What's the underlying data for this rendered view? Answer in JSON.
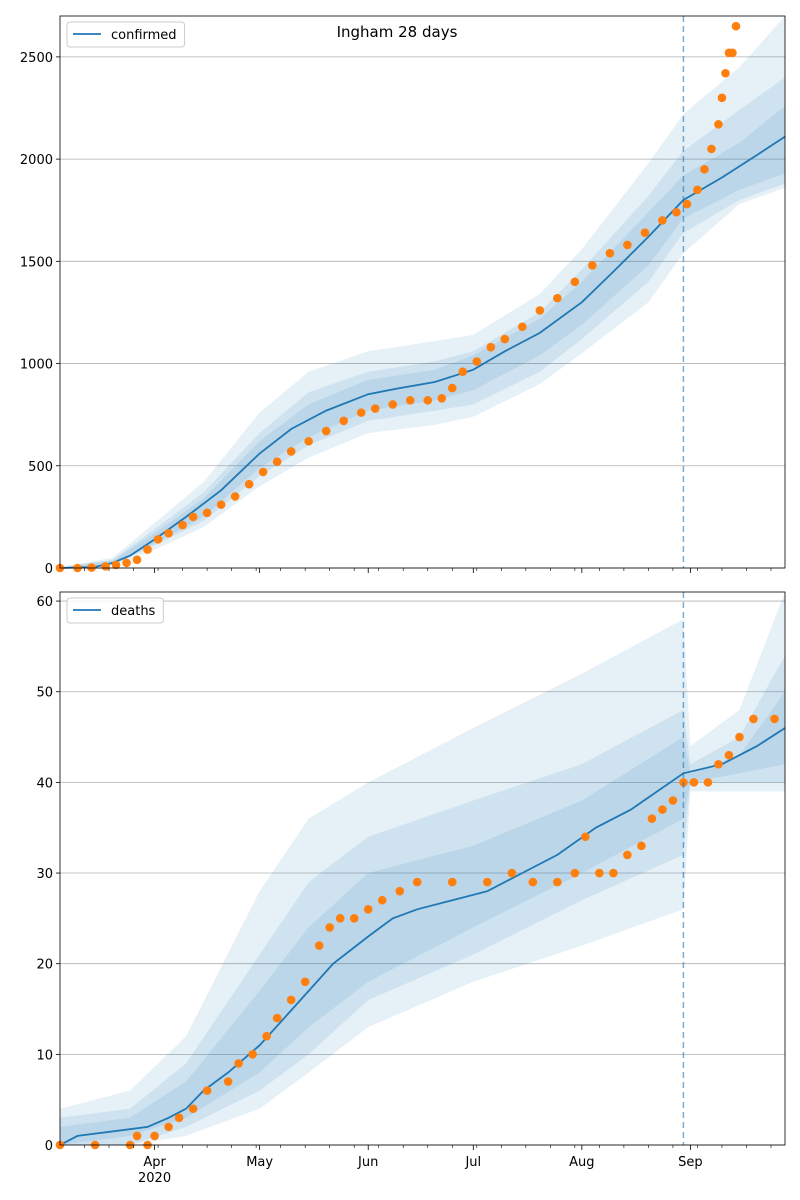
{
  "figure": {
    "title": "Ingham 28 days"
  },
  "colors": {
    "observed": "#ff7f0e",
    "model": "#1f77b4",
    "band": "#1f77b4",
    "grid": "#b0b0b0",
    "divider": "#1f77b4"
  },
  "x_axis": {
    "month_ticks": [
      {
        "date": "2020-04-01",
        "label": "Apr"
      },
      {
        "date": "2020-05-01",
        "label": "May"
      },
      {
        "date": "2020-06-01",
        "label": "Jun"
      },
      {
        "date": "2020-07-01",
        "label": "Jul"
      },
      {
        "date": "2020-08-01",
        "label": "Aug"
      },
      {
        "date": "2020-09-01",
        "label": "Sep"
      }
    ],
    "year_label": "2020",
    "range": [
      "2020-03-05",
      "2020-09-28"
    ]
  },
  "chart_data": [
    {
      "type": "line",
      "legend": "confirmed",
      "legend_position": "top-left",
      "grid": "horizontal",
      "ylim": [
        0,
        2700
      ],
      "yticks": [
        0,
        500,
        1000,
        1500,
        2000,
        2500
      ],
      "forecast_start": "2020-08-30",
      "model_line": [
        [
          "2020-03-05",
          0
        ],
        [
          "2020-03-15",
          5
        ],
        [
          "2020-03-20",
          25
        ],
        [
          "2020-03-25",
          60
        ],
        [
          "2020-04-01",
          140
        ],
        [
          "2020-04-10",
          250
        ],
        [
          "2020-04-20",
          380
        ],
        [
          "2020-05-01",
          560
        ],
        [
          "2020-05-10",
          680
        ],
        [
          "2020-05-20",
          770
        ],
        [
          "2020-06-01",
          850
        ],
        [
          "2020-06-10",
          880
        ],
        [
          "2020-06-20",
          910
        ],
        [
          "2020-07-01",
          970
        ],
        [
          "2020-07-10",
          1060
        ],
        [
          "2020-07-20",
          1150
        ],
        [
          "2020-08-01",
          1300
        ],
        [
          "2020-08-10",
          1450
        ],
        [
          "2020-08-20",
          1620
        ],
        [
          "2020-08-30",
          1800
        ],
        [
          "2020-09-10",
          1910
        ],
        [
          "2020-09-20",
          2020
        ],
        [
          "2020-09-28",
          2110
        ]
      ],
      "bands": [
        [
          [
            "2020-03-05",
            0,
            5
          ],
          [
            "2020-03-20",
            10,
            50
          ],
          [
            "2020-04-01",
            90,
            220
          ],
          [
            "2020-04-15",
            200,
            420
          ],
          [
            "2020-05-01",
            400,
            760
          ],
          [
            "2020-05-15",
            540,
            960
          ],
          [
            "2020-06-01",
            660,
            1060
          ],
          [
            "2020-06-20",
            700,
            1110
          ],
          [
            "2020-07-01",
            740,
            1140
          ],
          [
            "2020-07-20",
            900,
            1340
          ],
          [
            "2020-08-01",
            1050,
            1560
          ],
          [
            "2020-08-20",
            1300,
            1980
          ],
          [
            "2020-08-30",
            1540,
            2220
          ],
          [
            "2020-09-15",
            1780,
            2450
          ],
          [
            "2020-09-28",
            1860,
            2700
          ]
        ],
        [
          [
            "2020-03-05",
            0,
            3
          ],
          [
            "2020-03-20",
            15,
            40
          ],
          [
            "2020-04-01",
            110,
            190
          ],
          [
            "2020-04-15",
            230,
            370
          ],
          [
            "2020-05-01",
            450,
            660
          ],
          [
            "2020-05-15",
            600,
            860
          ],
          [
            "2020-06-01",
            720,
            960
          ],
          [
            "2020-06-20",
            770,
            1010
          ],
          [
            "2020-07-01",
            800,
            1060
          ],
          [
            "2020-07-20",
            960,
            1250
          ],
          [
            "2020-08-01",
            1120,
            1460
          ],
          [
            "2020-08-20",
            1400,
            1820
          ],
          [
            "2020-08-30",
            1640,
            2040
          ],
          [
            "2020-09-15",
            1800,
            2240
          ],
          [
            "2020-09-28",
            1880,
            2400
          ]
        ],
        [
          [
            "2020-03-05",
            0,
            2
          ],
          [
            "2020-03-20",
            18,
            35
          ],
          [
            "2020-04-01",
            120,
            170
          ],
          [
            "2020-04-15",
            250,
            340
          ],
          [
            "2020-05-01",
            490,
            620
          ],
          [
            "2020-05-15",
            640,
            800
          ],
          [
            "2020-06-01",
            770,
            920
          ],
          [
            "2020-06-20",
            820,
            970
          ],
          [
            "2020-07-01",
            870,
            1040
          ],
          [
            "2020-07-20",
            1040,
            1220
          ],
          [
            "2020-08-01",
            1190,
            1400
          ],
          [
            "2020-08-20",
            1480,
            1740
          ],
          [
            "2020-08-30",
            1710,
            1920
          ],
          [
            "2020-09-15",
            1850,
            2080
          ],
          [
            "2020-09-28",
            1930,
            2260
          ]
        ]
      ],
      "observed": [
        [
          "2020-03-05",
          0
        ],
        [
          "2020-03-10",
          0
        ],
        [
          "2020-03-14",
          2
        ],
        [
          "2020-03-18",
          8
        ],
        [
          "2020-03-21",
          15
        ],
        [
          "2020-03-24",
          25
        ],
        [
          "2020-03-27",
          40
        ],
        [
          "2020-03-30",
          90
        ],
        [
          "2020-04-02",
          140
        ],
        [
          "2020-04-05",
          170
        ],
        [
          "2020-04-09",
          210
        ],
        [
          "2020-04-12",
          250
        ],
        [
          "2020-04-16",
          270
        ],
        [
          "2020-04-20",
          310
        ],
        [
          "2020-04-24",
          350
        ],
        [
          "2020-04-28",
          410
        ],
        [
          "2020-05-02",
          470
        ],
        [
          "2020-05-06",
          520
        ],
        [
          "2020-05-10",
          570
        ],
        [
          "2020-05-15",
          620
        ],
        [
          "2020-05-20",
          670
        ],
        [
          "2020-05-25",
          720
        ],
        [
          "2020-05-30",
          760
        ],
        [
          "2020-06-03",
          780
        ],
        [
          "2020-06-08",
          800
        ],
        [
          "2020-06-13",
          820
        ],
        [
          "2020-06-18",
          820
        ],
        [
          "2020-06-22",
          830
        ],
        [
          "2020-06-25",
          880
        ],
        [
          "2020-06-28",
          960
        ],
        [
          "2020-07-02",
          1010
        ],
        [
          "2020-07-06",
          1080
        ],
        [
          "2020-07-10",
          1120
        ],
        [
          "2020-07-15",
          1180
        ],
        [
          "2020-07-20",
          1260
        ],
        [
          "2020-07-25",
          1320
        ],
        [
          "2020-07-30",
          1400
        ],
        [
          "2020-08-04",
          1480
        ],
        [
          "2020-08-09",
          1540
        ],
        [
          "2020-08-14",
          1580
        ],
        [
          "2020-08-19",
          1640
        ],
        [
          "2020-08-24",
          1700
        ],
        [
          "2020-08-28",
          1740
        ],
        [
          "2020-08-31",
          1780
        ],
        [
          "2020-09-03",
          1850
        ],
        [
          "2020-09-05",
          1950
        ],
        [
          "2020-09-07",
          2050
        ],
        [
          "2020-09-09",
          2170
        ],
        [
          "2020-09-10",
          2300
        ],
        [
          "2020-09-11",
          2420
        ],
        [
          "2020-09-12",
          2520
        ],
        [
          "2020-09-13",
          2520
        ],
        [
          "2020-09-14",
          2650
        ]
      ]
    },
    {
      "type": "line",
      "legend": "deaths",
      "legend_position": "top-left",
      "grid": "horizontal",
      "ylim": [
        0,
        61
      ],
      "yticks": [
        0,
        10,
        20,
        30,
        40,
        50,
        60
      ],
      "forecast_start": "2020-08-30",
      "model_line": [
        [
          "2020-03-05",
          0
        ],
        [
          "2020-03-10",
          1
        ],
        [
          "2020-03-30",
          2
        ],
        [
          "2020-04-05",
          3
        ],
        [
          "2020-04-10",
          4
        ],
        [
          "2020-04-15",
          6
        ],
        [
          "2020-04-22",
          8
        ],
        [
          "2020-05-01",
          11
        ],
        [
          "2020-05-08",
          14
        ],
        [
          "2020-05-15",
          17
        ],
        [
          "2020-05-22",
          20
        ],
        [
          "2020-06-01",
          23
        ],
        [
          "2020-06-08",
          25
        ],
        [
          "2020-06-15",
          26
        ],
        [
          "2020-06-25",
          27
        ],
        [
          "2020-07-05",
          28
        ],
        [
          "2020-07-15",
          30
        ],
        [
          "2020-07-25",
          32
        ],
        [
          "2020-08-05",
          35
        ],
        [
          "2020-08-15",
          37
        ],
        [
          "2020-08-30",
          41
        ],
        [
          "2020-09-10",
          42
        ],
        [
          "2020-09-20",
          44
        ],
        [
          "2020-09-28",
          46
        ]
      ],
      "bands": [
        [
          [
            "2020-03-05",
            0,
            4
          ],
          [
            "2020-03-25",
            0,
            6
          ],
          [
            "2020-04-10",
            1,
            12
          ],
          [
            "2020-05-01",
            4,
            28
          ],
          [
            "2020-05-15",
            8,
            36
          ],
          [
            "2020-06-01",
            13,
            40
          ],
          [
            "2020-07-01",
            18,
            46
          ],
          [
            "2020-08-01",
            22,
            52
          ],
          [
            "2020-08-30",
            26,
            58
          ],
          [
            "2020-09-01",
            39,
            44
          ],
          [
            "2020-09-15",
            39,
            48
          ],
          [
            "2020-09-28",
            39,
            61
          ]
        ],
        [
          [
            "2020-03-05",
            0,
            3
          ],
          [
            "2020-03-25",
            0,
            4
          ],
          [
            "2020-04-10",
            2,
            9
          ],
          [
            "2020-05-01",
            6,
            21
          ],
          [
            "2020-05-15",
            10,
            29
          ],
          [
            "2020-06-01",
            16,
            34
          ],
          [
            "2020-07-01",
            21,
            38
          ],
          [
            "2020-08-01",
            27,
            42
          ],
          [
            "2020-08-30",
            32,
            48
          ],
          [
            "2020-09-01",
            40,
            42
          ],
          [
            "2020-09-15",
            40,
            45
          ],
          [
            "2020-09-28",
            40,
            54
          ]
        ],
        [
          [
            "2020-03-05",
            0,
            2
          ],
          [
            "2020-03-25",
            1,
            3
          ],
          [
            "2020-04-10",
            3,
            7
          ],
          [
            "2020-05-01",
            8,
            17
          ],
          [
            "2020-05-15",
            13,
            24
          ],
          [
            "2020-06-01",
            18,
            30
          ],
          [
            "2020-07-01",
            24,
            33
          ],
          [
            "2020-08-01",
            30,
            38
          ],
          [
            "2020-08-30",
            36,
            45
          ],
          [
            "2020-09-01",
            40,
            41
          ],
          [
            "2020-09-15",
            41,
            43
          ],
          [
            "2020-09-28",
            42,
            50
          ]
        ]
      ],
      "observed": [
        [
          "2020-03-05",
          0
        ],
        [
          "2020-03-15",
          0
        ],
        [
          "2020-03-25",
          0
        ],
        [
          "2020-03-27",
          1
        ],
        [
          "2020-03-30",
          0
        ],
        [
          "2020-04-01",
          1
        ],
        [
          "2020-04-05",
          2
        ],
        [
          "2020-04-08",
          3
        ],
        [
          "2020-04-12",
          4
        ],
        [
          "2020-04-16",
          6
        ],
        [
          "2020-04-22",
          7
        ],
        [
          "2020-04-25",
          9
        ],
        [
          "2020-04-29",
          10
        ],
        [
          "2020-05-03",
          12
        ],
        [
          "2020-05-06",
          14
        ],
        [
          "2020-05-10",
          16
        ],
        [
          "2020-05-14",
          18
        ],
        [
          "2020-05-18",
          22
        ],
        [
          "2020-05-21",
          24
        ],
        [
          "2020-05-24",
          25
        ],
        [
          "2020-05-28",
          25
        ],
        [
          "2020-06-01",
          26
        ],
        [
          "2020-06-05",
          27
        ],
        [
          "2020-06-10",
          28
        ],
        [
          "2020-06-15",
          29
        ],
        [
          "2020-06-25",
          29
        ],
        [
          "2020-07-05",
          29
        ],
        [
          "2020-07-12",
          30
        ],
        [
          "2020-07-18",
          29
        ],
        [
          "2020-07-25",
          29
        ],
        [
          "2020-07-30",
          30
        ],
        [
          "2020-08-02",
          34
        ],
        [
          "2020-08-06",
          30
        ],
        [
          "2020-08-10",
          30
        ],
        [
          "2020-08-14",
          32
        ],
        [
          "2020-08-18",
          33
        ],
        [
          "2020-08-21",
          36
        ],
        [
          "2020-08-24",
          37
        ],
        [
          "2020-08-27",
          38
        ],
        [
          "2020-08-30",
          40
        ],
        [
          "2020-09-02",
          40
        ],
        [
          "2020-09-06",
          40
        ],
        [
          "2020-09-09",
          42
        ],
        [
          "2020-09-12",
          43
        ],
        [
          "2020-09-15",
          45
        ],
        [
          "2020-09-19",
          47
        ],
        [
          "2020-09-25",
          47
        ]
      ]
    }
  ]
}
